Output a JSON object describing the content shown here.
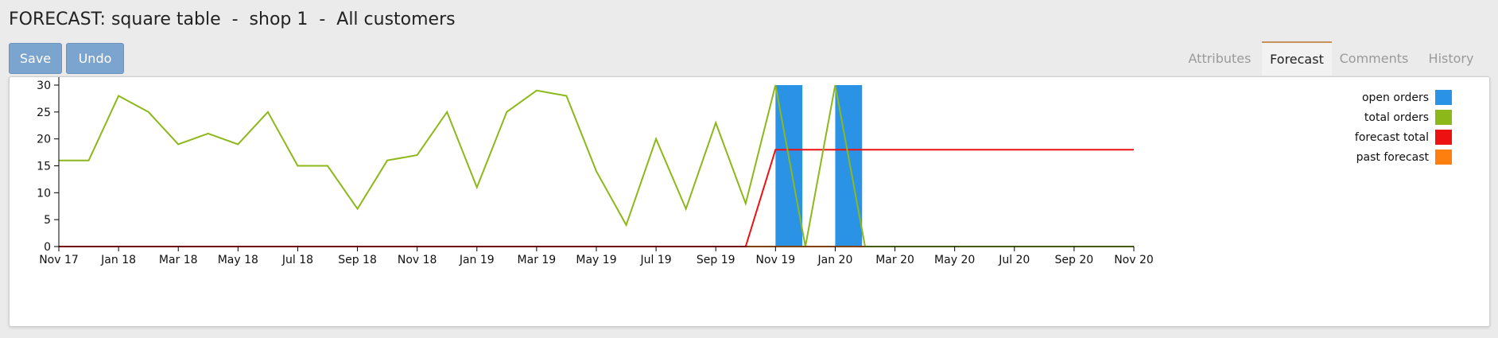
{
  "header": {
    "title": "FORECAST: square table  -  shop 1  -  All customers"
  },
  "toolbar": {
    "save_label": "Save",
    "undo_label": "Undo"
  },
  "tabs": [
    {
      "label": "Attributes",
      "active": false
    },
    {
      "label": "Forecast",
      "active": true
    },
    {
      "label": "Comments",
      "active": false
    },
    {
      "label": "History",
      "active": false
    }
  ],
  "colors": {
    "open_orders": "#2b93e6",
    "total_orders": "#8cb81a",
    "forecast_total": "#ee1111",
    "past_forecast": "#ff7f0e",
    "tab_accent": "#c9915e"
  },
  "chart_data": {
    "type": "line",
    "x": [
      "Nov 17",
      "Dec 17",
      "Jan 18",
      "Feb 18",
      "Mar 18",
      "Apr 18",
      "May 18",
      "Jun 18",
      "Jul 18",
      "Aug 18",
      "Sep 18",
      "Oct 18",
      "Nov 18",
      "Dec 18",
      "Jan 19",
      "Feb 19",
      "Mar 19",
      "Apr 19",
      "May 19",
      "Jun 19",
      "Jul 19",
      "Aug 19",
      "Sep 19",
      "Oct 19",
      "Nov 19",
      "Dec 19",
      "Jan 20",
      "Feb 20",
      "Mar 20",
      "Apr 20",
      "May 20",
      "Jun 20",
      "Jul 20",
      "Aug 20",
      "Sep 20",
      "Oct 20",
      "Nov 20"
    ],
    "x_tick_labels": [
      "Nov 17",
      "Jan 18",
      "Mar 18",
      "May 18",
      "Jul 18",
      "Sep 18",
      "Nov 18",
      "Jan 19",
      "Mar 19",
      "May 19",
      "Jul 19",
      "Sep 19",
      "Nov 19",
      "Jan 20",
      "Mar 20",
      "May 20",
      "Jul 20",
      "Sep 20",
      "Nov 20"
    ],
    "y_ticks": [
      0,
      5,
      10,
      15,
      20,
      25,
      30
    ],
    "ylim": [
      0,
      30
    ],
    "grid": false,
    "legend_position": "top-right",
    "series": [
      {
        "name": "open orders",
        "kind": "bar",
        "values": [
          0,
          0,
          0,
          0,
          0,
          0,
          0,
          0,
          0,
          0,
          0,
          0,
          0,
          0,
          0,
          0,
          0,
          0,
          0,
          0,
          0,
          0,
          0,
          0,
          30,
          0,
          30,
          0,
          0,
          0,
          0,
          0,
          0,
          0,
          0,
          0,
          0
        ]
      },
      {
        "name": "total orders",
        "kind": "line",
        "values": [
          16,
          16,
          28,
          25,
          19,
          21,
          19,
          25,
          15,
          15,
          7,
          16,
          17,
          25,
          11,
          25,
          29,
          28,
          14,
          4,
          20,
          7,
          23,
          8,
          30,
          0,
          30,
          0,
          0,
          0,
          0,
          0,
          0,
          0,
          0,
          0,
          0
        ]
      },
      {
        "name": "forecast total",
        "kind": "line",
        "values": [
          0,
          0,
          0,
          0,
          0,
          0,
          0,
          0,
          0,
          0,
          0,
          0,
          0,
          0,
          0,
          0,
          0,
          0,
          0,
          0,
          0,
          0,
          0,
          0,
          18,
          18,
          18,
          18,
          18,
          18,
          18,
          18,
          18,
          18,
          18,
          18,
          18
        ]
      },
      {
        "name": "past forecast",
        "kind": "line",
        "values": [
          0,
          0,
          0,
          0,
          0,
          0,
          0,
          0,
          0,
          0,
          0,
          0,
          0,
          0,
          0,
          0,
          0,
          0,
          0,
          0,
          0,
          0,
          0,
          0,
          0,
          0,
          0,
          0,
          0,
          0,
          0,
          0,
          0,
          0,
          0,
          0,
          0
        ]
      }
    ]
  }
}
